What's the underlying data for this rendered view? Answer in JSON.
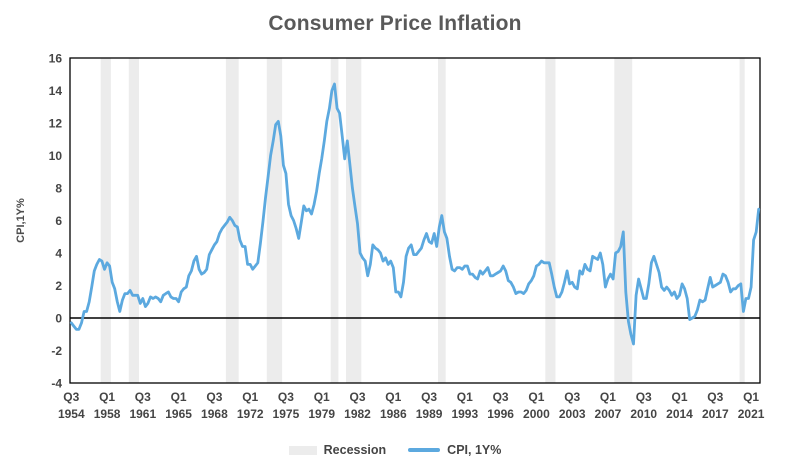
{
  "title": "Consumer Price Inflation",
  "legend": {
    "recession": {
      "label": "Recession",
      "color": "#ECECEC"
    },
    "cpi": {
      "label": "CPI, 1Y%",
      "color": "#5CA9DF"
    }
  },
  "chart_data": {
    "type": "line",
    "title": "Consumer Price Inflation",
    "xlabel": "",
    "ylabel": "CPI,1Y%",
    "ylim": [
      -4,
      16
    ],
    "y_ticks": [
      16,
      14,
      12,
      10,
      8,
      6,
      4,
      2,
      0,
      -2,
      -4
    ],
    "grid": false,
    "legend_position": "bottom",
    "x_start": "1954-Q3",
    "x_end": "2021-Q4",
    "x_frequency": "quarterly",
    "x_tick_labels": [
      "Q3 1954",
      "Q1 1958",
      "Q3 1961",
      "Q1 1965",
      "Q3 1968",
      "Q1 1972",
      "Q3 1975",
      "Q1 1979",
      "Q3 1982",
      "Q1 1986",
      "Q3 1989",
      "Q1 1993",
      "Q3 1996",
      "Q1 2000",
      "Q3 2003",
      "Q1 2007",
      "Q3 2010",
      "Q1 2014",
      "Q3 2017",
      "Q1 2021"
    ],
    "recession_color": "#ECECEC",
    "recession_bands": [
      {
        "start": "1957-Q3",
        "end": "1958-Q2"
      },
      {
        "start": "1960-Q2",
        "end": "1961-Q1"
      },
      {
        "start": "1969-Q4",
        "end": "1970-Q4"
      },
      {
        "start": "1973-Q4",
        "end": "1975-Q1"
      },
      {
        "start": "1980-Q1",
        "end": "1980-Q3"
      },
      {
        "start": "1981-Q3",
        "end": "1982-Q4"
      },
      {
        "start": "1990-Q3",
        "end": "1991-Q1"
      },
      {
        "start": "2001-Q1",
        "end": "2001-Q4"
      },
      {
        "start": "2007-Q4",
        "end": "2009-Q2"
      },
      {
        "start": "2020-Q1",
        "end": "2020-Q2"
      }
    ],
    "series": [
      {
        "name": "CPI, 1Y%",
        "color": "#5CA9DF",
        "values": [
          -0.3,
          -0.5,
          -0.7,
          -0.7,
          -0.3,
          0.4,
          0.4,
          1.0,
          1.9,
          2.9,
          3.3,
          3.6,
          3.5,
          3.0,
          3.4,
          3.2,
          2.2,
          1.8,
          1.0,
          0.4,
          1.1,
          1.5,
          1.5,
          1.7,
          1.4,
          1.4,
          1.4,
          0.9,
          1.2,
          0.7,
          0.9,
          1.3,
          1.2,
          1.3,
          1.2,
          1.0,
          1.4,
          1.5,
          1.6,
          1.3,
          1.2,
          1.2,
          1.0,
          1.6,
          1.8,
          1.9,
          2.6,
          2.9,
          3.5,
          3.8,
          3.0,
          2.7,
          2.8,
          3.0,
          3.9,
          4.2,
          4.5,
          4.7,
          5.2,
          5.5,
          5.7,
          5.9,
          6.2,
          6.0,
          5.7,
          5.6,
          4.8,
          4.4,
          4.4,
          3.3,
          3.3,
          3.0,
          3.2,
          3.4,
          4.6,
          5.9,
          7.4,
          8.7,
          10.0,
          10.9,
          11.9,
          12.1,
          11.2,
          9.4,
          8.9,
          7.0,
          6.3,
          6.0,
          5.5,
          4.9,
          5.9,
          6.9,
          6.6,
          6.7,
          6.4,
          7.0,
          7.8,
          8.9,
          9.8,
          10.9,
          12.1,
          12.9,
          14.0,
          14.4,
          12.9,
          12.6,
          11.2,
          9.8,
          10.9,
          9.5,
          8.0,
          6.9,
          5.8,
          4.0,
          3.7,
          3.5,
          2.6,
          3.3,
          4.5,
          4.3,
          4.2,
          4.0,
          3.5,
          3.7,
          3.3,
          3.5,
          3.1,
          1.6,
          1.6,
          1.3,
          2.2,
          3.8,
          4.3,
          4.5,
          3.9,
          3.9,
          4.1,
          4.3,
          4.8,
          5.2,
          4.7,
          4.6,
          5.2,
          4.4,
          5.6,
          6.3,
          5.3,
          4.9,
          3.8,
          3.0,
          2.9,
          3.1,
          3.1,
          3.0,
          3.2,
          3.2,
          2.7,
          2.7,
          2.5,
          2.4,
          2.9,
          2.7,
          2.9,
          3.1,
          2.6,
          2.6,
          2.7,
          2.8,
          2.9,
          3.2,
          2.9,
          2.3,
          2.2,
          1.9,
          1.5,
          1.6,
          1.6,
          1.5,
          1.7,
          2.1,
          2.3,
          2.6,
          3.2,
          3.3,
          3.5,
          3.4,
          3.4,
          3.4,
          2.7,
          1.9,
          1.3,
          1.3,
          1.6,
          2.2,
          2.9,
          2.1,
          2.2,
          1.9,
          1.8,
          2.9,
          2.7,
          3.3,
          3.0,
          2.9,
          3.8,
          3.7,
          3.6,
          4.0,
          3.3,
          1.9,
          2.4,
          2.7,
          2.4,
          4.0,
          4.1,
          4.4,
          5.3,
          1.6,
          -0.2,
          -1.0,
          -1.6,
          1.4,
          2.4,
          1.8,
          1.2,
          1.2,
          2.1,
          3.4,
          3.8,
          3.3,
          2.8,
          1.9,
          1.7,
          1.9,
          1.7,
          1.4,
          1.6,
          1.2,
          1.4,
          2.1,
          1.8,
          1.2,
          -0.1,
          0.0,
          0.1,
          0.5,
          1.1,
          1.0,
          1.1,
          1.8,
          2.5,
          1.9,
          2.0,
          2.1,
          2.2,
          2.7,
          2.6,
          2.2,
          1.6,
          1.8,
          1.8,
          2.0,
          2.1,
          0.4,
          1.2,
          1.2,
          1.9,
          4.8,
          5.3,
          6.7
        ]
      }
    ]
  }
}
